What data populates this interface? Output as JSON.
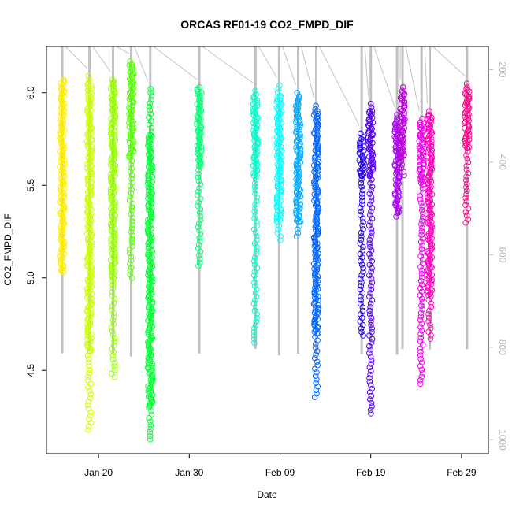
{
  "chart_data": {
    "type": "scatter",
    "title": "ORCAS RF01-19 CO2_FMPD_DIF",
    "xlabel": "Date",
    "ylabel": "CO2_FMPD_DIF",
    "x_ticks": [
      "Jan 20",
      "Jan 30",
      "Feb 09",
      "Feb 19",
      "Feb 29"
    ],
    "y_ticks": [
      "4.5",
      "5.0",
      "5.5",
      "6.0"
    ],
    "y2_ticks": [
      "200",
      "400",
      "600",
      "800",
      "1000"
    ],
    "ylim": [
      4.05,
      6.25
    ],
    "y2lim": [
      1030,
      150
    ],
    "y2_description": "pressure trace (grey)",
    "grid": false,
    "legend": "none",
    "start_date": "2016-01-15",
    "x_unit": "days since 2016-01-15",
    "flights": [
      {
        "day": 1.0,
        "ymin": 5.03,
        "ymax": 6.07,
        "dense_min": 5.03,
        "dense_max": 6.07,
        "color": "#ffee00"
      },
      {
        "day": 4.0,
        "ymin": 4.17,
        "ymax": 6.09,
        "dense_min": 4.6,
        "dense_max": 6.05,
        "color": "#ccff00"
      },
      {
        "day": 6.6,
        "ymin": 4.45,
        "ymax": 6.07,
        "dense_min": 5.0,
        "dense_max": 6.07,
        "color": "#99ff00"
      },
      {
        "day": 8.6,
        "ymin": 4.98,
        "ymax": 6.17,
        "dense_min": 5.65,
        "dense_max": 6.15,
        "color": "#55ff00"
      },
      {
        "day": 10.7,
        "ymin": 4.12,
        "ymax": 6.02,
        "dense_min": 4.3,
        "dense_max": 5.77,
        "color": "#00ff33"
      },
      {
        "day": 16.1,
        "ymin": 5.05,
        "ymax": 6.03,
        "dense_min": 5.6,
        "dense_max": 6.02,
        "color": "#00ff77"
      },
      {
        "day": 22.3,
        "ymin": 4.64,
        "ymax": 6.01,
        "dense_min": 5.55,
        "dense_max": 5.98,
        "color": "#00ffcc"
      },
      {
        "day": 24.9,
        "ymin": 5.2,
        "ymax": 6.04,
        "dense_min": 5.3,
        "dense_max": 5.98,
        "color": "#00ffff"
      },
      {
        "day": 27.0,
        "ymin": 5.22,
        "ymax": 6.0,
        "dense_min": 5.3,
        "dense_max": 5.97,
        "color": "#00aaff"
      },
      {
        "day": 29.0,
        "ymin": 4.35,
        "ymax": 5.93,
        "dense_min": 4.7,
        "dense_max": 5.9,
        "color": "#0066ff"
      },
      {
        "day": 34.0,
        "ymin": 4.68,
        "ymax": 5.78,
        "dense_min": 5.55,
        "dense_max": 5.75,
        "color": "#2200ee"
      },
      {
        "day": 35.0,
        "ymin": 4.26,
        "ymax": 5.94,
        "dense_min": 5.55,
        "dense_max": 5.9,
        "color": "#5500ee"
      },
      {
        "day": 37.9,
        "ymin": 5.33,
        "ymax": 5.88,
        "dense_min": 5.35,
        "dense_max": 5.85,
        "color": "#aa00ee"
      },
      {
        "day": 38.5,
        "ymin": 5.55,
        "ymax": 6.03,
        "dense_min": 5.65,
        "dense_max": 6.0,
        "color": "#bb00dd"
      },
      {
        "day": 40.6,
        "ymin": 4.41,
        "ymax": 5.86,
        "dense_min": 5.5,
        "dense_max": 5.84,
        "color": "#ee00ee"
      },
      {
        "day": 41.5,
        "ymin": 4.67,
        "ymax": 5.9,
        "dense_min": 4.9,
        "dense_max": 5.88,
        "color": "#ff00bb"
      },
      {
        "day": 45.6,
        "ymin": 5.28,
        "ymax": 6.05,
        "dense_min": 5.7,
        "dense_max": 6.02,
        "color": "#ff0088"
      }
    ]
  }
}
